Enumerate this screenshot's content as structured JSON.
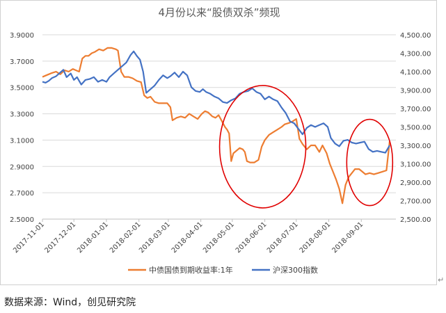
{
  "chart_data": {
    "type": "line",
    "title": "4月份以来“股债双杀”频现",
    "x_ticks": [
      "2017-11-01",
      "2017-12-01",
      "2018-01-01",
      "2018-02-01",
      "2018-03-01",
      "2018-04-01",
      "2018-05-01",
      "2018-06-01",
      "2018-07-01",
      "2018-08-01",
      "2018-09-01"
    ],
    "y_left": {
      "ticks": [
        "2.5000",
        "2.7000",
        "2.9000",
        "3.1000",
        "3.3000",
        "3.5000",
        "3.7000",
        "3.9000"
      ],
      "range": [
        2.5,
        3.9
      ]
    },
    "y_right": {
      "ticks": [
        "2,500.00",
        "2,700.00",
        "2,900.00",
        "3,100.00",
        "3,300.00",
        "3,500.00",
        "3,700.00",
        "3,900.00",
        "4,100.00",
        "4,300.00",
        "4,500.00"
      ],
      "range": [
        2500,
        4500
      ]
    },
    "legend_position": "bottom",
    "grid": true,
    "series": [
      {
        "name": "中债国债到期收益率:1年",
        "axis": "left",
        "color": "#ED7D31",
        "points": [
          [
            "2017-11-01",
            3.58
          ],
          [
            "2017-11-04",
            3.59
          ],
          [
            "2017-11-07",
            3.6
          ],
          [
            "2017-11-10",
            3.61
          ],
          [
            "2017-11-14",
            3.62
          ],
          [
            "2017-11-18",
            3.6
          ],
          [
            "2017-11-22",
            3.63
          ],
          [
            "2017-11-26",
            3.62
          ],
          [
            "2017-11-30",
            3.64
          ],
          [
            "2017-12-03",
            3.63
          ],
          [
            "2017-12-06",
            3.62
          ],
          [
            "2017-12-09",
            3.72
          ],
          [
            "2017-12-12",
            3.74
          ],
          [
            "2017-12-15",
            3.74
          ],
          [
            "2017-12-18",
            3.76
          ],
          [
            "2017-12-21",
            3.77
          ],
          [
            "2017-12-25",
            3.79
          ],
          [
            "2017-12-29",
            3.78
          ],
          [
            "2018-01-02",
            3.8
          ],
          [
            "2018-01-06",
            3.8
          ],
          [
            "2018-01-10",
            3.79
          ],
          [
            "2018-01-12",
            3.78
          ],
          [
            "2018-01-15",
            3.62
          ],
          [
            "2018-01-18",
            3.58
          ],
          [
            "2018-01-22",
            3.58
          ],
          [
            "2018-01-26",
            3.57
          ],
          [
            "2018-01-30",
            3.55
          ],
          [
            "2018-02-03",
            3.54
          ],
          [
            "2018-02-06",
            3.44
          ],
          [
            "2018-02-09",
            3.42
          ],
          [
            "2018-02-12",
            3.43
          ],
          [
            "2018-02-16",
            3.39
          ],
          [
            "2018-02-20",
            3.38
          ],
          [
            "2018-02-24",
            3.38
          ],
          [
            "2018-02-28",
            3.38
          ],
          [
            "2018-03-03",
            3.35
          ],
          [
            "2018-03-05",
            3.25
          ],
          [
            "2018-03-09",
            3.27
          ],
          [
            "2018-03-13",
            3.28
          ],
          [
            "2018-03-17",
            3.27
          ],
          [
            "2018-03-21",
            3.3
          ],
          [
            "2018-03-25",
            3.28
          ],
          [
            "2018-03-29",
            3.26
          ],
          [
            "2018-04-02",
            3.3
          ],
          [
            "2018-04-05",
            3.32
          ],
          [
            "2018-04-08",
            3.31
          ],
          [
            "2018-04-12",
            3.28
          ],
          [
            "2018-04-15",
            3.27
          ],
          [
            "2018-04-18",
            3.29
          ],
          [
            "2018-04-22",
            3.23
          ],
          [
            "2018-04-24",
            3.2
          ],
          [
            "2018-04-26",
            3.18
          ],
          [
            "2018-04-28",
            3.15
          ],
          [
            "2018-04-30",
            2.94
          ],
          [
            "2018-05-02",
            3.0
          ],
          [
            "2018-05-05",
            3.02
          ],
          [
            "2018-05-08",
            3.04
          ],
          [
            "2018-05-11",
            3.03
          ],
          [
            "2018-05-13",
            3.01
          ],
          [
            "2018-05-15",
            2.94
          ],
          [
            "2018-05-18",
            2.93
          ],
          [
            "2018-05-22",
            2.93
          ],
          [
            "2018-05-26",
            2.95
          ],
          [
            "2018-05-29",
            3.05
          ],
          [
            "2018-06-01",
            3.1
          ],
          [
            "2018-06-05",
            3.14
          ],
          [
            "2018-06-09",
            3.16
          ],
          [
            "2018-06-13",
            3.18
          ],
          [
            "2018-06-17",
            3.2
          ],
          [
            "2018-06-20",
            3.22
          ],
          [
            "2018-06-24",
            3.23
          ],
          [
            "2018-06-27",
            3.24
          ],
          [
            "2018-07-01",
            3.26
          ],
          [
            "2018-07-04",
            3.11
          ],
          [
            "2018-07-07",
            3.07
          ],
          [
            "2018-07-11",
            3.03
          ],
          [
            "2018-07-15",
            3.06
          ],
          [
            "2018-07-19",
            3.06
          ],
          [
            "2018-07-23",
            3.01
          ],
          [
            "2018-07-26",
            3.06
          ],
          [
            "2018-07-30",
            3.0
          ],
          [
            "2018-08-02",
            2.92
          ],
          [
            "2018-08-05",
            2.86
          ],
          [
            "2018-08-08",
            2.8
          ],
          [
            "2018-08-11",
            2.73
          ],
          [
            "2018-08-14",
            2.62
          ],
          [
            "2018-08-17",
            2.76
          ],
          [
            "2018-08-20",
            2.82
          ],
          [
            "2018-08-23",
            2.85
          ],
          [
            "2018-08-26",
            2.88
          ],
          [
            "2018-08-30",
            2.88
          ],
          [
            "2018-09-02",
            2.86
          ],
          [
            "2018-09-05",
            2.84
          ],
          [
            "2018-09-09",
            2.85
          ],
          [
            "2018-09-13",
            2.84
          ],
          [
            "2018-09-17",
            2.85
          ],
          [
            "2018-09-21",
            2.86
          ],
          [
            "2018-09-25",
            2.87
          ],
          [
            "2018-09-28",
            3.09
          ]
        ]
      },
      {
        "name": "沪深300指数",
        "axis": "right",
        "color": "#4472C4",
        "points": [
          [
            "2017-11-01",
            3990
          ],
          [
            "2017-11-04",
            3980
          ],
          [
            "2017-11-07",
            4000
          ],
          [
            "2017-11-10",
            4030
          ],
          [
            "2017-11-14",
            4050
          ],
          [
            "2017-11-17",
            4080
          ],
          [
            "2017-11-21",
            4120
          ],
          [
            "2017-11-24",
            4040
          ],
          [
            "2017-11-28",
            4080
          ],
          [
            "2017-12-01",
            4010
          ],
          [
            "2017-12-04",
            4040
          ],
          [
            "2017-12-08",
            3960
          ],
          [
            "2017-12-12",
            4010
          ],
          [
            "2017-12-16",
            4020
          ],
          [
            "2017-12-20",
            4040
          ],
          [
            "2017-12-24",
            3990
          ],
          [
            "2017-12-28",
            4010
          ],
          [
            "2018-01-01",
            3990
          ],
          [
            "2018-01-04",
            4040
          ],
          [
            "2018-01-08",
            4080
          ],
          [
            "2018-01-12",
            4120
          ],
          [
            "2018-01-16",
            4160
          ],
          [
            "2018-01-20",
            4200
          ],
          [
            "2018-01-24",
            4280
          ],
          [
            "2018-01-27",
            4320
          ],
          [
            "2018-01-30",
            4270
          ],
          [
            "2018-02-02",
            4230
          ],
          [
            "2018-02-05",
            4100
          ],
          [
            "2018-02-08",
            3870
          ],
          [
            "2018-02-12",
            3910
          ],
          [
            "2018-02-16",
            3950
          ],
          [
            "2018-02-20",
            4010
          ],
          [
            "2018-02-24",
            4060
          ],
          [
            "2018-02-28",
            4030
          ],
          [
            "2018-03-03",
            4050
          ],
          [
            "2018-03-07",
            4090
          ],
          [
            "2018-03-11",
            4040
          ],
          [
            "2018-03-15",
            4100
          ],
          [
            "2018-03-19",
            4060
          ],
          [
            "2018-03-23",
            3930
          ],
          [
            "2018-03-27",
            3890
          ],
          [
            "2018-03-31",
            3880
          ],
          [
            "2018-04-03",
            3910
          ],
          [
            "2018-04-06",
            3880
          ],
          [
            "2018-04-10",
            3860
          ],
          [
            "2018-04-14",
            3830
          ],
          [
            "2018-04-18",
            3810
          ],
          [
            "2018-04-22",
            3770
          ],
          [
            "2018-04-26",
            3760
          ],
          [
            "2018-04-30",
            3790
          ],
          [
            "2018-05-04",
            3810
          ],
          [
            "2018-05-08",
            3860
          ],
          [
            "2018-05-12",
            3880
          ],
          [
            "2018-05-16",
            3890
          ],
          [
            "2018-05-20",
            3920
          ],
          [
            "2018-05-24",
            3880
          ],
          [
            "2018-05-28",
            3860
          ],
          [
            "2018-06-01",
            3800
          ],
          [
            "2018-06-05",
            3830
          ],
          [
            "2018-06-09",
            3800
          ],
          [
            "2018-06-13",
            3780
          ],
          [
            "2018-06-17",
            3710
          ],
          [
            "2018-06-21",
            3650
          ],
          [
            "2018-06-25",
            3560
          ],
          [
            "2018-06-29",
            3540
          ],
          [
            "2018-07-03",
            3480
          ],
          [
            "2018-07-07",
            3420
          ],
          [
            "2018-07-11",
            3490
          ],
          [
            "2018-07-15",
            3520
          ],
          [
            "2018-07-19",
            3500
          ],
          [
            "2018-07-23",
            3520
          ],
          [
            "2018-07-27",
            3540
          ],
          [
            "2018-07-31",
            3500
          ],
          [
            "2018-08-03",
            3380
          ],
          [
            "2018-08-07",
            3320
          ],
          [
            "2018-08-11",
            3290
          ],
          [
            "2018-08-15",
            3350
          ],
          [
            "2018-08-19",
            3360
          ],
          [
            "2018-08-23",
            3330
          ],
          [
            "2018-08-27",
            3320
          ],
          [
            "2018-08-31",
            3330
          ],
          [
            "2018-09-04",
            3340
          ],
          [
            "2018-09-08",
            3260
          ],
          [
            "2018-09-12",
            3230
          ],
          [
            "2018-09-16",
            3240
          ],
          [
            "2018-09-20",
            3230
          ],
          [
            "2018-09-24",
            3220
          ],
          [
            "2018-09-28",
            3300
          ]
        ]
      }
    ],
    "annotations": [
      {
        "shape": "ellipse",
        "color": "#E00000",
        "note": "2018-04 to 2018-07"
      },
      {
        "shape": "ellipse",
        "color": "#E00000",
        "note": "2018-08 to 2018-09"
      }
    ]
  },
  "footer": {
    "caption": "数据来源：Wind，创见研究院",
    "para_mark": "↵"
  }
}
